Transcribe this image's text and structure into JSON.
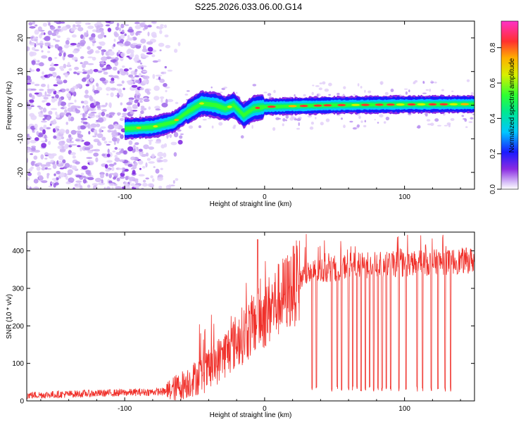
{
  "title": "S225.2026.033.06.00.G14",
  "chart_data": [
    {
      "type": "heatmap",
      "name": "spectrogram",
      "xlabel": "Height of straight line (km)",
      "ylabel": "Frequency (Hz)",
      "xlim": [
        -170,
        150
      ],
      "ylim": [
        -25,
        25
      ],
      "xticks": [
        -100,
        0,
        100
      ],
      "yticks": [
        -20,
        -10,
        0,
        10,
        20
      ],
      "colorbar": {
        "label": "Normalized spectral amplitude",
        "range": [
          0.0,
          0.95
        ],
        "ticks": [
          0.0,
          0.2,
          0.4,
          0.6,
          0.8
        ]
      },
      "ridge": [
        {
          "x": -100,
          "y": -7
        },
        {
          "x": -80,
          "y": -6.5
        },
        {
          "x": -65,
          "y": -5
        },
        {
          "x": -55,
          "y": -2
        },
        {
          "x": -45,
          "y": 0.5
        },
        {
          "x": -35,
          "y": 0
        },
        {
          "x": -28,
          "y": -1
        },
        {
          "x": -22,
          "y": 0
        },
        {
          "x": -15,
          "y": -3
        },
        {
          "x": -8,
          "y": -1
        },
        {
          "x": 0,
          "y": -0.5
        },
        {
          "x": 20,
          "y": -0.3
        },
        {
          "x": 50,
          "y": 0
        },
        {
          "x": 100,
          "y": 0.2
        },
        {
          "x": 150,
          "y": 0.3
        }
      ]
    },
    {
      "type": "line",
      "name": "snr",
      "xlabel": "Height of straight line (km)",
      "ylabel": "SNR (10 * v/v)",
      "xlim": [
        -170,
        150
      ],
      "ylim": [
        0,
        450
      ],
      "xticks": [
        -100,
        0,
        100
      ],
      "yticks": [
        0,
        100,
        200,
        300,
        400
      ],
      "color": "#f0302a",
      "envelope": [
        {
          "x": -170,
          "y": 15
        },
        {
          "x": -70,
          "y": 25
        },
        {
          "x": -60,
          "y": 40
        },
        {
          "x": -40,
          "y": 80
        },
        {
          "x": -20,
          "y": 160
        },
        {
          "x": 0,
          "y": 230
        },
        {
          "x": 10,
          "y": 270
        },
        {
          "x": 30,
          "y": 340
        },
        {
          "x": 60,
          "y": 360
        },
        {
          "x": 100,
          "y": 365
        },
        {
          "x": 150,
          "y": 375
        }
      ],
      "dropouts_x": [
        34,
        37,
        48,
        52,
        55,
        60,
        63,
        66,
        69,
        72,
        75,
        78,
        81,
        84,
        87,
        90,
        96,
        101,
        109,
        113,
        119,
        124,
        129,
        133
      ]
    }
  ]
}
